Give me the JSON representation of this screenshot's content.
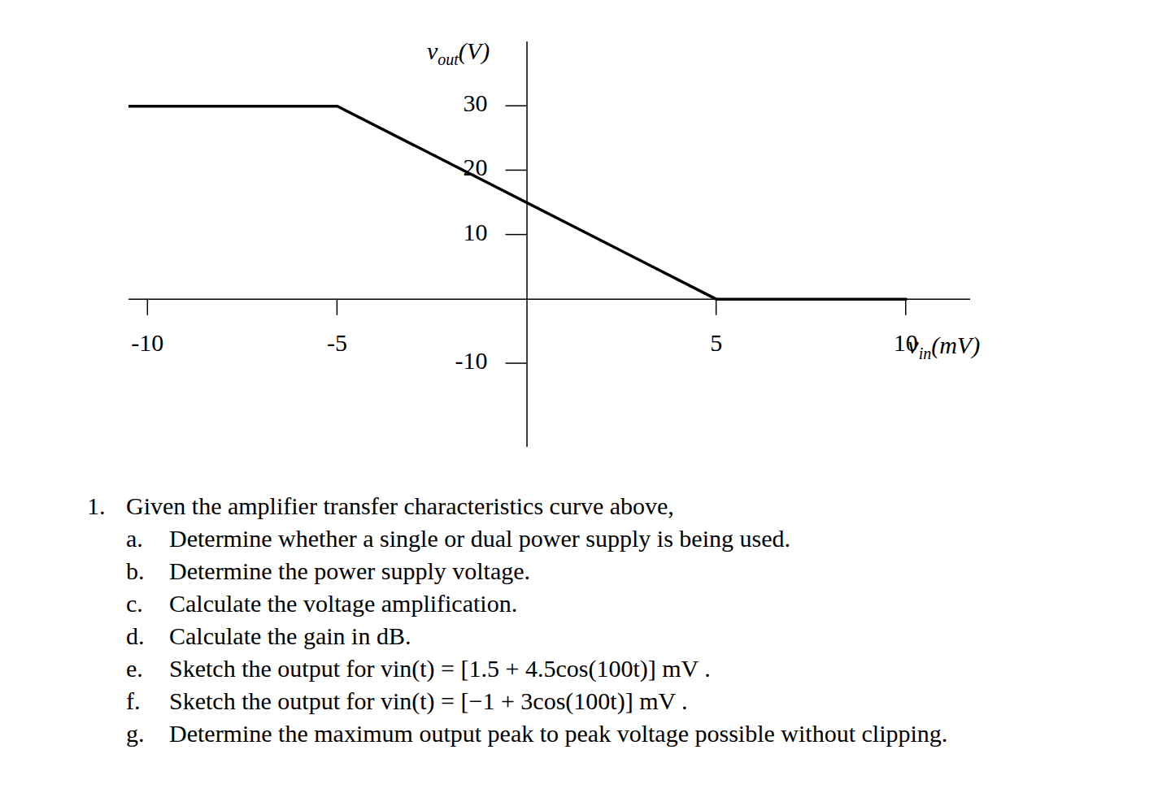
{
  "chart_data": {
    "type": "line",
    "xlabel": "vin(mV)",
    "ylabel": "vout(V)",
    "x": [
      -10.5,
      -5,
      5,
      10
    ],
    "values": [
      30,
      30,
      0,
      0
    ],
    "color": "#000000",
    "xlim": [
      -10.5,
      11.7
    ],
    "xticks": [
      -10,
      -5,
      5,
      10
    ],
    "ylim": [
      -23,
      40
    ],
    "yticks": [
      -10,
      10,
      20,
      30
    ],
    "grid": false
  },
  "problem": {
    "number": "1.",
    "intro": "Given the amplifier transfer characteristics curve above,",
    "items": [
      {
        "letter": "a.",
        "text": "Determine whether a single or dual power supply is being used."
      },
      {
        "letter": "b.",
        "text": "Determine the power supply voltage."
      },
      {
        "letter": "c.",
        "text": "Calculate the voltage amplification."
      },
      {
        "letter": "d.",
        "text": "Calculate the gain in dB."
      },
      {
        "letter": "e.",
        "text": "Sketch the output for vin(t) = [1.5 + 4.5cos(100t)] mV ."
      },
      {
        "letter": "f.",
        "text": "Sketch the output for vin(t) = [−1 + 3cos(100t)] mV ."
      },
      {
        "letter": "g.",
        "text": "Determine the maximum output peak to peak voltage possible without clipping."
      }
    ]
  }
}
